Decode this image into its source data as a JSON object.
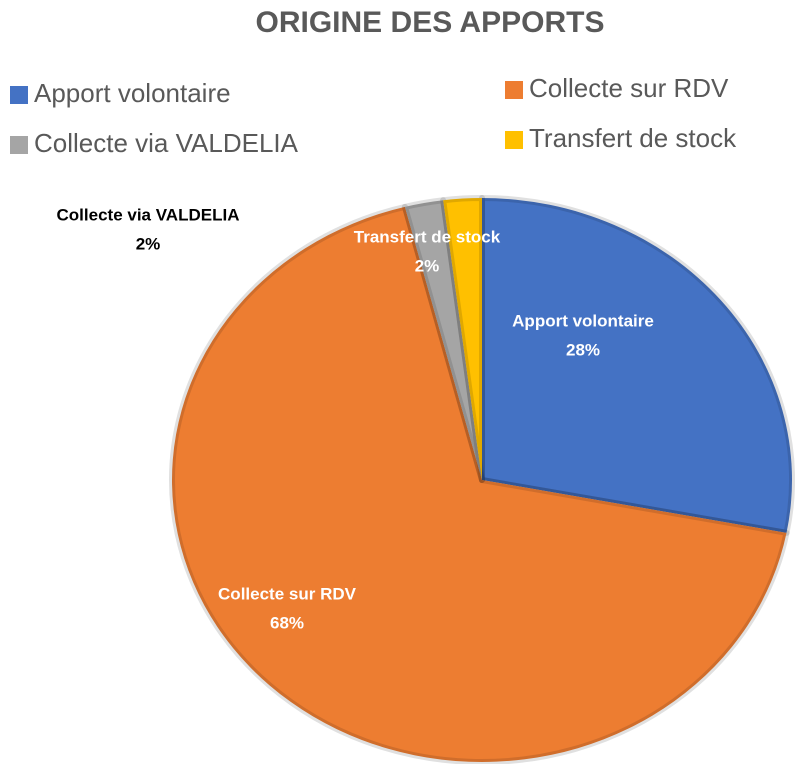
{
  "chart_data": {
    "type": "pie",
    "title": "ORIGINE DES APPORTS",
    "categories": [
      "Apport volontaire",
      "Collecte sur RDV",
      "Collecte via VALDELIA",
      "Transfert de stock"
    ],
    "values": [
      28,
      68,
      2,
      2
    ],
    "value_labels": [
      "28%",
      "68%",
      "2%",
      "2%"
    ],
    "colors": [
      "#4472c4",
      "#ed7d31",
      "#a5a5a5",
      "#ffc000"
    ],
    "legend": "top"
  }
}
